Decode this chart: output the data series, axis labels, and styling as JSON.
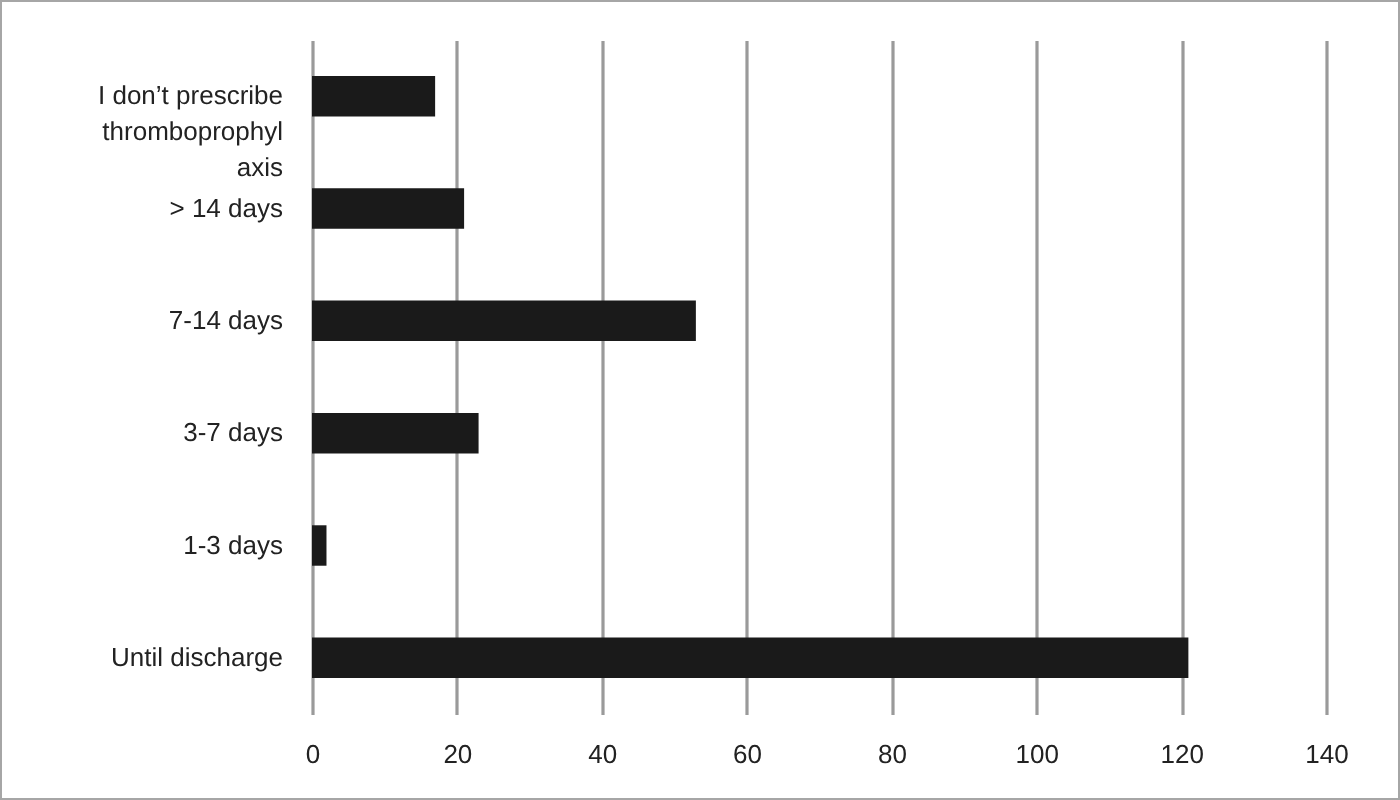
{
  "chart_data": {
    "type": "bar",
    "orientation": "horizontal",
    "categories": [
      "I don’t prescribe thromboprophyl axis",
      "> 14 days",
      "7-14 days",
      "3-7 days",
      "1-3 days",
      "Until discharge"
    ],
    "values": [
      17,
      21,
      53,
      23,
      2,
      121
    ],
    "color": "#1a1a1a",
    "xlim": [
      0,
      140
    ],
    "xticks": [
      0,
      20,
      40,
      60,
      80,
      100,
      120,
      140
    ],
    "grid": "x"
  }
}
